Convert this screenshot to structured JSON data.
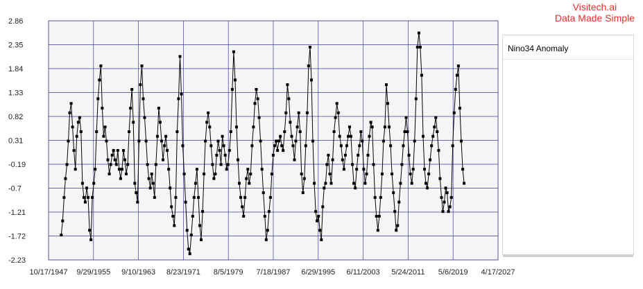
{
  "brand": {
    "line1": "Visitech.ai",
    "line2": "Data Made Simple"
  },
  "colors": {
    "grid": "#3b3b9a",
    "plot_bg": "#f5f5f5",
    "series": "#000000",
    "brand": "#e8302a"
  },
  "chart_data": {
    "type": "line",
    "title": "",
    "xlabel": "",
    "ylabel": "",
    "x_ticks": [
      "10/17/1947",
      "9/29/1955",
      "9/10/1963",
      "8/23/1971",
      "8/5/1979",
      "7/18/1987",
      "6/29/1995",
      "6/11/2003",
      "5/24/2011",
      "5/6/2019",
      "4/17/2027"
    ],
    "y_ticks": [
      "2.86",
      "2.35",
      "1.84",
      "1.33",
      "0.82",
      "0.31",
      "-0.19",
      "-0.7",
      "-1.21",
      "-1.72",
      "-2.23"
    ],
    "xlim": [
      "1947-10-17",
      "2027-04-17"
    ],
    "ylim": [
      -2.23,
      2.86
    ],
    "grid": true,
    "legend": "right",
    "series": [
      {
        "name": "Nino34 Anomaly",
        "x_start": "1950-01",
        "frequency": "quarterly",
        "values": [
          -1.7,
          -1.4,
          -0.9,
          -0.5,
          -0.2,
          0.3,
          0.9,
          1.1,
          0.6,
          0.1,
          -0.3,
          0.4,
          0.7,
          0.8,
          0.5,
          -0.6,
          -0.9,
          -1.0,
          -0.7,
          -0.9,
          -1.6,
          -1.8,
          -0.9,
          -0.6,
          -0.3,
          0.5,
          1.2,
          1.6,
          1.9,
          1.0,
          0.4,
          0.6,
          0.3,
          -0.1,
          -0.4,
          -0.2,
          0.0,
          0.1,
          -0.1,
          -0.2,
          0.1,
          -0.3,
          -0.5,
          -0.3,
          0.1,
          -0.1,
          -0.4,
          -0.2,
          0.5,
          1.0,
          1.4,
          0.7,
          -0.6,
          -0.8,
          -1.0,
          0.3,
          1.5,
          1.9,
          1.2,
          0.8,
          0.3,
          -0.2,
          -0.5,
          -0.7,
          -0.4,
          -0.6,
          -0.9,
          -0.2,
          0.4,
          1.0,
          0.7,
          0.3,
          -0.1,
          0.2,
          0.4,
          0.1,
          -0.3,
          -0.7,
          -1.1,
          -1.3,
          -1.5,
          -0.9,
          0.5,
          1.2,
          2.1,
          1.3,
          0.2,
          -0.4,
          -1.0,
          -1.6,
          -2.0,
          -2.1,
          -1.7,
          -1.3,
          -0.9,
          -0.6,
          -0.3,
          -0.9,
          -1.5,
          -1.8,
          -1.2,
          -0.4,
          0.3,
          0.7,
          0.9,
          0.6,
          0.2,
          -0.2,
          -0.5,
          -0.4,
          0.0,
          0.3,
          0.1,
          -0.2,
          0.4,
          0.2,
          0.0,
          -0.3,
          -0.2,
          0.1,
          0.5,
          1.4,
          2.2,
          1.6,
          0.6,
          -0.1,
          -0.6,
          -0.9,
          -1.1,
          -1.3,
          -0.9,
          -0.5,
          -0.3,
          -0.6,
          -0.4,
          0.2,
          0.6,
          1.1,
          1.4,
          1.2,
          0.8,
          0.3,
          -0.3,
          -0.8,
          -1.3,
          -1.8,
          -1.6,
          -1.2,
          -0.9,
          -0.4,
          0.0,
          0.2,
          0.3,
          0.1,
          0.3,
          0.4,
          0.2,
          0.1,
          0.5,
          0.9,
          1.5,
          1.2,
          0.7,
          0.4,
          0.2,
          -0.1,
          0.3,
          0.6,
          0.9,
          0.5,
          -0.4,
          -0.8,
          -0.5,
          0.2,
          0.9,
          1.9,
          2.3,
          1.6,
          0.3,
          -0.6,
          -1.2,
          -1.4,
          -1.3,
          -1.6,
          -1.8,
          -1.1,
          -0.7,
          -0.6,
          -0.2,
          0.0,
          -0.4,
          -0.6,
          -0.1,
          0.5,
          0.8,
          1.1,
          0.9,
          0.4,
          0.2,
          -0.1,
          -0.3,
          0.0,
          0.2,
          0.4,
          0.6,
          0.4,
          -0.2,
          -0.6,
          -0.7,
          -0.3,
          0.0,
          0.2,
          0.5,
          0.3,
          -0.3,
          -0.6,
          -0.4,
          0.0,
          0.4,
          0.7,
          0.6,
          -0.2,
          -0.9,
          -1.3,
          -1.6,
          -1.3,
          -0.9,
          -0.4,
          0.3,
          0.6,
          1.5,
          1.1,
          0.6,
          0.2,
          -0.4,
          -0.8,
          -1.2,
          -1.6,
          -1.5,
          -1.0,
          -0.6,
          -0.2,
          0.2,
          0.5,
          0.8,
          0.5,
          0.0,
          -0.4,
          -0.6,
          -0.3,
          0.3,
          1.2,
          2.3,
          2.6,
          2.3,
          1.7,
          0.4,
          -0.3,
          -0.6,
          -0.7,
          -0.4,
          -0.1,
          0.2,
          0.4,
          0.6,
          0.8,
          0.5,
          0.1,
          -0.5,
          -0.9,
          -1.2,
          -1.0,
          -0.7,
          -0.8,
          -1.2,
          -1.1,
          -0.9,
          0.2,
          0.9,
          1.4,
          1.7,
          1.9,
          1.0,
          0.3,
          -0.3,
          -0.6
        ]
      }
    ]
  }
}
